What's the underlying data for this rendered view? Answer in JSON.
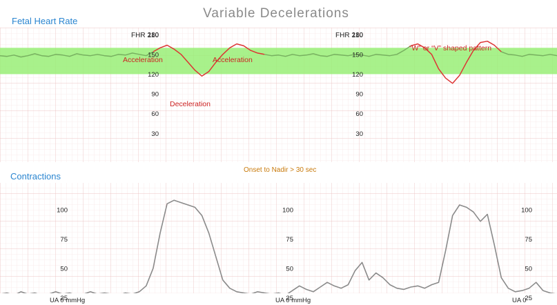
{
  "title": "Variable Decelerations",
  "fhr_section_label": "Fetal Heart Rate",
  "uc_section_label": "Contractions",
  "annotations": {
    "acceleration_left": "Acceleration",
    "acceleration_right": "Acceleration",
    "deceleration": "Deceleration",
    "w_v_pattern": "“W” or “V” shaped pattern",
    "onset_to_nadir": "Onset to Nadir > 30 sec"
  },
  "colors": {
    "title": "#8a8a8a",
    "section_label": "#2a85d0",
    "acceleration": "#cc2222",
    "deceleration": "#cc2222",
    "onset_note": "#c8790a",
    "normal_band": "#99ee77",
    "baseline_trace": "#77b060",
    "abnormal_trace": "#dd3333",
    "uc_trace": "#8a8a8a",
    "grid_minor": "#f6dede",
    "grid_major": "#ecc4c4",
    "axis_text": "#222222"
  },
  "chart_data": [
    {
      "type": "line",
      "name": "fhr",
      "ylim": [
        0,
        210
      ],
      "y_ticks": [
        30,
        60,
        90,
        120,
        150,
        180
      ],
      "y_top_label": "FHR 210",
      "normal_band": [
        120,
        160
      ],
      "x": [
        0,
        5,
        10,
        15,
        20,
        25,
        30,
        35,
        40,
        45,
        50,
        55,
        60,
        65,
        70,
        75,
        80,
        85,
        90,
        95,
        100,
        105,
        110,
        115,
        120,
        125,
        130,
        135,
        140,
        145,
        150,
        155,
        160,
        165,
        170,
        175,
        180,
        185,
        190,
        195,
        200,
        205,
        210,
        215,
        220,
        225,
        230,
        235,
        240,
        245,
        250,
        255,
        260,
        265,
        270,
        275,
        280,
        285,
        290,
        295,
        300,
        305,
        310,
        315,
        320,
        325,
        330,
        335,
        340,
        345,
        350,
        355,
        360,
        365,
        370,
        375,
        380,
        385,
        390,
        395,
        400
      ],
      "y": [
        148,
        147,
        149,
        146,
        148,
        151,
        148,
        147,
        150,
        149,
        147,
        151,
        149,
        148,
        150,
        148,
        147,
        150,
        149,
        152,
        150,
        148,
        154,
        160,
        164,
        158,
        150,
        138,
        126,
        117,
        124,
        138,
        150,
        160,
        166,
        163,
        156,
        152,
        150,
        148,
        149,
        147,
        150,
        148,
        149,
        151,
        148,
        147,
        150,
        149,
        148,
        150,
        149,
        147,
        150,
        149,
        148,
        150,
        156,
        163,
        166,
        160,
        150,
        128,
        114,
        106,
        118,
        138,
        156,
        168,
        170,
        164,
        154,
        150,
        149,
        147,
        150,
        149,
        148,
        150,
        148
      ],
      "segments": [
        {
          "kind": "baseline",
          "from": 0,
          "to": 110
        },
        {
          "kind": "abnormal",
          "from": 110,
          "to": 190
        },
        {
          "kind": "baseline",
          "from": 190,
          "to": 295
        },
        {
          "kind": "abnormal",
          "from": 295,
          "to": 360
        },
        {
          "kind": "baseline",
          "from": 360,
          "to": 400
        }
      ]
    },
    {
      "type": "line",
      "name": "contractions",
      "ylim": [
        0,
        100
      ],
      "y_ticks": [
        25,
        50,
        75,
        100
      ],
      "y_bottom_label": "UA 0 mmHg",
      "y_bottom_label_short": "UA 0",
      "x": [
        0,
        5,
        10,
        15,
        20,
        25,
        30,
        35,
        40,
        45,
        50,
        55,
        60,
        65,
        70,
        75,
        80,
        85,
        90,
        95,
        100,
        105,
        110,
        115,
        120,
        125,
        130,
        135,
        140,
        145,
        150,
        155,
        160,
        165,
        170,
        175,
        180,
        185,
        190,
        195,
        200,
        205,
        210,
        215,
        220,
        225,
        230,
        235,
        240,
        245,
        250,
        255,
        260,
        265,
        270,
        275,
        280,
        285,
        290,
        295,
        300,
        305,
        310,
        315,
        320,
        325,
        330,
        335,
        340,
        345,
        350,
        355,
        360,
        365,
        370,
        375,
        380,
        385,
        390,
        395,
        400
      ],
      "y": [
        28,
        29,
        27,
        30,
        28,
        29,
        27,
        28,
        30,
        28,
        29,
        27,
        28,
        30,
        28,
        29,
        28,
        27,
        29,
        28,
        30,
        35,
        50,
        80,
        105,
        108,
        106,
        104,
        102,
        95,
        80,
        60,
        40,
        33,
        30,
        29,
        28,
        30,
        29,
        28,
        29,
        27,
        31,
        35,
        32,
        30,
        34,
        38,
        35,
        33,
        36,
        48,
        55,
        40,
        46,
        42,
        36,
        33,
        32,
        34,
        35,
        33,
        36,
        38,
        65,
        95,
        104,
        102,
        98,
        90,
        96,
        70,
        42,
        33,
        30,
        31,
        33,
        38,
        31,
        29,
        28
      ],
      "segments": [
        {
          "kind": "uc",
          "from": 0,
          "to": 400
        }
      ]
    }
  ]
}
